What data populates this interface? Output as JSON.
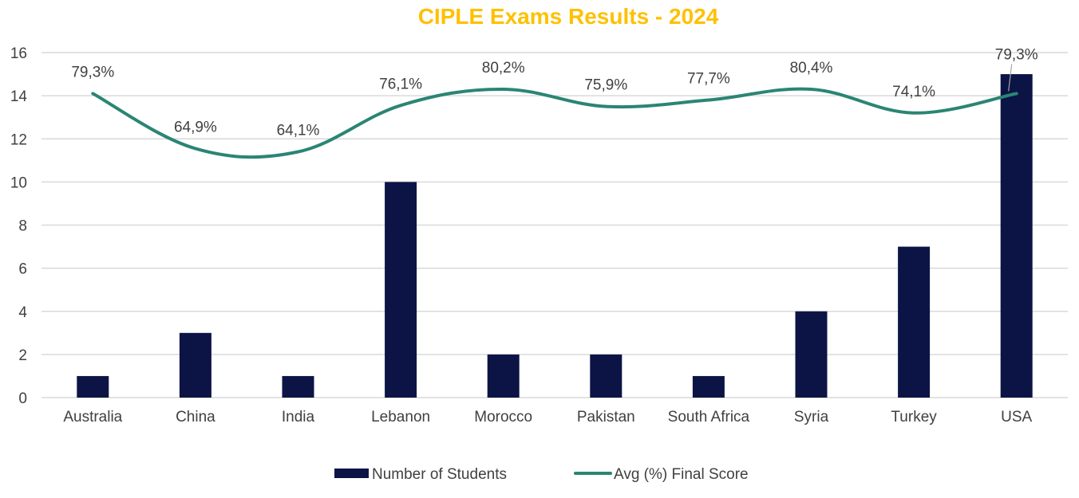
{
  "chart_data": {
    "type": "bar",
    "title": "CIPLE Exams Results - 2024",
    "categories": [
      "Australia",
      "China",
      "India",
      "Lebanon",
      "Morocco",
      "Pakistan",
      "South Africa",
      "Syria",
      "Turkey",
      "USA"
    ],
    "series": [
      {
        "name": "Number of Students",
        "type": "bar",
        "color": "#0c1446",
        "values": [
          1,
          3,
          1,
          10,
          2,
          2,
          1,
          4,
          7,
          15
        ]
      },
      {
        "name": "Avg (%) Final Score",
        "type": "line",
        "color": "#2a8574",
        "values": [
          14.1,
          11.55,
          11.4,
          13.55,
          14.3,
          13.5,
          13.8,
          14.3,
          13.2,
          14.1
        ],
        "data_labels": [
          "79,3%",
          "64,9%",
          "64,1%",
          "76,1%",
          "80,2%",
          "75,9%",
          "77,7%",
          "80,4%",
          "74,1%",
          "79,3%"
        ]
      }
    ],
    "ylim": [
      0,
      16
    ],
    "yticks": [
      "0",
      "2",
      "4",
      "6",
      "8",
      "10",
      "12",
      "14",
      "16"
    ],
    "grid": true,
    "legend_position": "bottom",
    "xlabel": "",
    "ylabel": ""
  }
}
